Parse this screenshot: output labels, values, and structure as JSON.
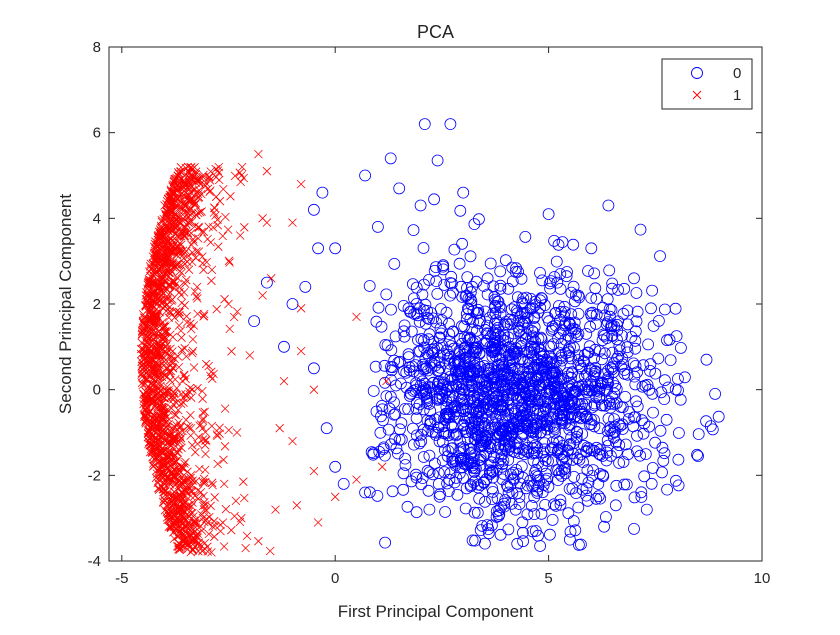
{
  "chart_data": {
    "type": "scatter",
    "title": "PCA",
    "xlabel": "First Principal Component",
    "ylabel": "Second Principal Component",
    "xlim": [
      -5.3,
      10
    ],
    "ylim": [
      -4,
      8
    ],
    "xticks": [
      -5,
      0,
      5,
      10
    ],
    "yticks": [
      -4,
      -2,
      0,
      2,
      4,
      6,
      8
    ],
    "grid": false,
    "legend_position": "top-right",
    "series": [
      {
        "name": "0",
        "marker": "circle",
        "color": "#0000ff",
        "distribution": {
          "center": [
            4.2,
            -0.1
          ],
          "spread": [
            1.6,
            1.45
          ],
          "point_count": 1800
        },
        "points": [
          [
            2.1,
            6.2
          ],
          [
            2.7,
            6.2
          ],
          [
            1.3,
            5.4
          ],
          [
            2.4,
            5.35
          ],
          [
            0.7,
            5.0
          ],
          [
            1.5,
            4.7
          ],
          [
            -0.3,
            4.6
          ],
          [
            -0.5,
            4.2
          ],
          [
            0.0,
            3.3
          ],
          [
            -0.4,
            3.3
          ],
          [
            -0.7,
            2.4
          ],
          [
            -1.0,
            2.0
          ],
          [
            -1.6,
            2.5
          ],
          [
            -1.9,
            1.6
          ],
          [
            -1.2,
            1.0
          ],
          [
            -0.5,
            0.5
          ],
          [
            -0.2,
            -0.9
          ],
          [
            0.0,
            -1.8
          ],
          [
            0.2,
            -2.2
          ],
          [
            8.7,
            0.7
          ],
          [
            8.9,
            -0.1
          ],
          [
            8.8,
            -0.85
          ],
          [
            8.5,
            -1.55
          ],
          [
            7.3,
            -2.8
          ],
          [
            7.0,
            -3.25
          ],
          [
            6.3,
            -3.2
          ],
          [
            5.5,
            -3.5
          ],
          [
            4.8,
            -3.65
          ],
          [
            3.6,
            -3.35
          ],
          [
            0.7,
            -2.4
          ],
          [
            6.4,
            4.3
          ],
          [
            7.0,
            2.6
          ],
          [
            8.0,
            1.25
          ],
          [
            7.8,
            0.05
          ],
          [
            1.0,
            3.8
          ],
          [
            2.0,
            4.3
          ],
          [
            3.0,
            4.6
          ],
          [
            5.0,
            4.1
          ],
          [
            6.0,
            3.3
          ],
          [
            7.4,
            1.9
          ]
        ]
      },
      {
        "name": "1",
        "marker": "cross",
        "color": "#ff0000",
        "distribution": {
          "center": [
            -3.7,
            0.6
          ],
          "spread": [
            0.5,
            2.6
          ],
          "point_count": 1600
        },
        "points": [
          [
            -1.8,
            5.5
          ],
          [
            -2.8,
            5.15
          ],
          [
            -3.4,
            5.0
          ],
          [
            -1.6,
            5.1
          ],
          [
            -0.8,
            4.8
          ],
          [
            -1.7,
            4.0
          ],
          [
            -1.6,
            3.9
          ],
          [
            -1.7,
            2.2
          ],
          [
            -1.0,
            3.9
          ],
          [
            -1.5,
            2.6
          ],
          [
            -0.8,
            0.9
          ],
          [
            -1.2,
            0.2
          ],
          [
            -0.5,
            0.0
          ],
          [
            -1.3,
            -0.9
          ],
          [
            -0.5,
            -1.9
          ],
          [
            0.5,
            -2.1
          ],
          [
            1.1,
            -1.8
          ],
          [
            1.2,
            0.2
          ],
          [
            0.5,
            1.7
          ],
          [
            -0.4,
            -3.1
          ],
          [
            -0.9,
            -2.7
          ],
          [
            -1.4,
            -2.8
          ],
          [
            -2.2,
            -3.0
          ],
          [
            -2.1,
            -3.7
          ],
          [
            -2.9,
            -3.8
          ],
          [
            -3.6,
            -3.7
          ],
          [
            -4.2,
            -1.6
          ],
          [
            -4.3,
            0.0
          ],
          [
            -4.0,
            4.3
          ],
          [
            -3.2,
            3.8
          ],
          [
            -2.5,
            2.0
          ],
          [
            -2.3,
            -1.0
          ],
          [
            -2.0,
            0.8
          ],
          [
            -0.8,
            1.9
          ],
          [
            0.0,
            -2.5
          ],
          [
            -1.0,
            -1.2
          ],
          [
            -2.7,
            4.4
          ],
          [
            -3.9,
            -3.2
          ],
          [
            -4.4,
            2.0
          ],
          [
            -2.6,
            -2.2
          ]
        ]
      }
    ]
  }
}
